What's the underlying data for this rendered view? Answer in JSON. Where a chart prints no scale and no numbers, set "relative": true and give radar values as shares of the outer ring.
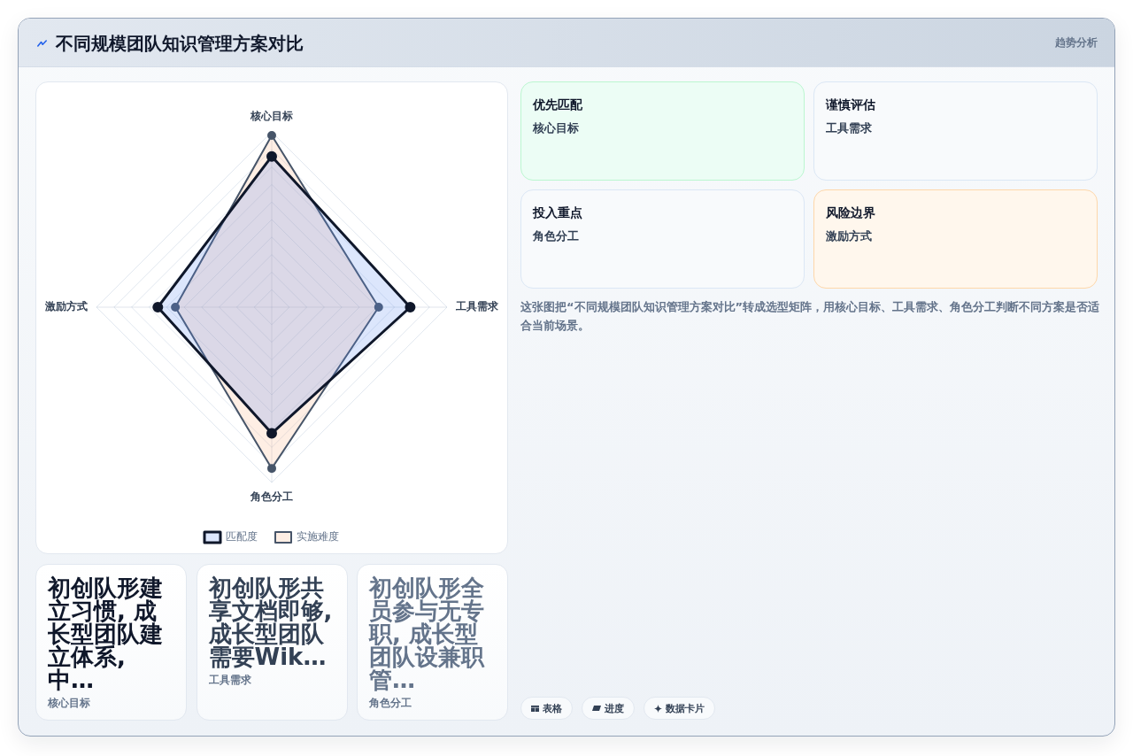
{
  "chart_data": [
    {
      "type": "radar",
      "title": "不同规模团队知识管理方案对比",
      "categories": [
        "核心目标",
        "工具需求",
        "角色分工",
        "激励方式"
      ],
      "series": [
        {
          "name": "匹配度",
          "color": "#0f172a",
          "values": [
            0.86,
            0.79,
            0.72,
            0.65
          ]
        },
        {
          "name": "实施难度",
          "color": "#475569",
          "values": [
            0.98,
            0.61,
            0.92,
            0.55
          ]
        }
      ],
      "relative": true,
      "grid": true,
      "legend": "bottom",
      "marker": "circle"
    },
    {
      "type": "other",
      "annotations": [
        "趋势分析",
        "优先匹配",
        "核心目标",
        "谨慎评估",
        "工具需求",
        "投入重点",
        "角色分工",
        "风险边界",
        "激励方式",
        "这张图把“不同规模团队知识管理方案对比”转成选型矩阵，用核心目标、工具需求、角色分工判断不同方案是否适合当前场景。",
        "表格",
        "进度",
        "数据卡片"
      ]
    },
    {
      "type": "other",
      "annotations": [
        "初创队形建立习惯, 成长型团队建立体系, 中…",
        "核心目标",
        "初创队形共享文档即够, 成长型团队需要Wik…",
        "工具需求",
        "初创队形全员参与无专职, 成长型团队设兼职管…",
        "角色分工"
      ]
    }
  ]
}
